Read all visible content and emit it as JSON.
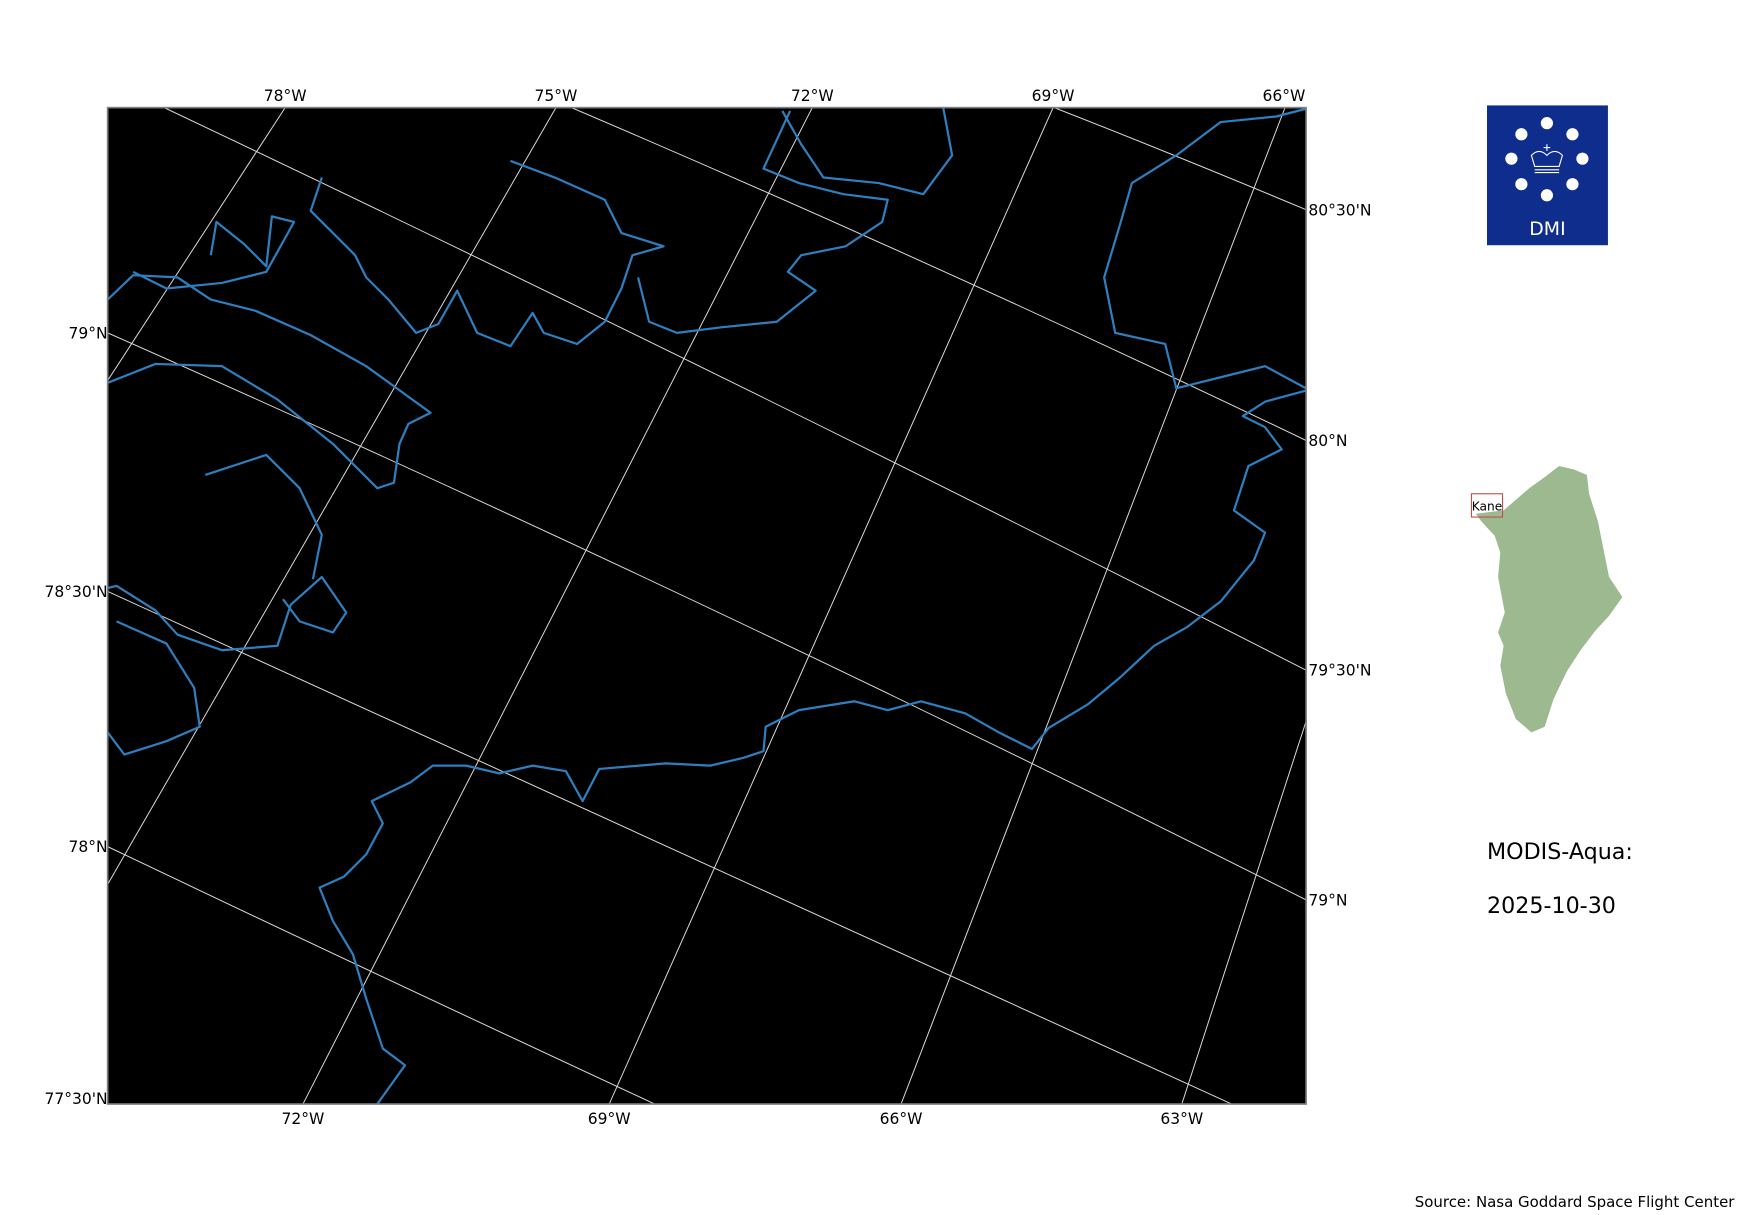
{
  "map": {
    "colors": {
      "ocean": "#000000",
      "coastline": "#2e7fbf",
      "gridline": "#d9d9d9",
      "frame": "#808080"
    },
    "top_lon_labels": [
      "78°W",
      "75°W",
      "72°W",
      "69°W",
      "66°W"
    ],
    "bottom_lon_labels": [
      "72°W",
      "69°W",
      "66°W",
      "63°W"
    ],
    "left_lat_labels": [
      "79°N",
      "78°30'N",
      "78°N",
      "77°30'N"
    ],
    "right_lat_labels": [
      "80°30'N",
      "80°N",
      "79°30'N",
      "79°N"
    ]
  },
  "logo": {
    "text": "DMI",
    "color": "#0f2d8c"
  },
  "inset": {
    "region_label": "Kane",
    "land_color": "#9cb98f",
    "box_color": "#c0504d"
  },
  "info": {
    "product": "MODIS-Aqua:",
    "date": "2025-10-30"
  },
  "source": "Source: Nasa Goddard Space Flight Center"
}
